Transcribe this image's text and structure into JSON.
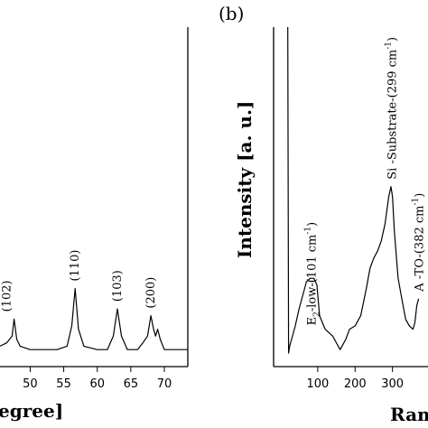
{
  "chart_data": [
    {
      "type": "line",
      "panel_label": "",
      "xlabel": "egree]",
      "ylabel": "",
      "xticks": [
        50,
        55,
        60,
        65,
        70
      ],
      "xlim": [
        45.5,
        73.5
      ],
      "ylim": [
        0,
        100
      ],
      "series": [
        {
          "x": [
            45.5,
            46.5,
            47.3,
            47.6,
            48.0,
            48.5,
            50,
            52,
            54,
            55.5,
            56.2,
            56.7,
            57.2,
            58,
            60,
            61.5,
            62.4,
            63.0,
            63.6,
            64.5,
            66,
            66.8,
            67.5,
            68.0,
            68.4,
            68.7,
            69.0,
            69.4,
            70,
            71,
            72,
            73.5
          ],
          "y": [
            6,
            7,
            9,
            14,
            8,
            6,
            5,
            5,
            5,
            6,
            12,
            23,
            11,
            6,
            5,
            5,
            9,
            17,
            9,
            5,
            5,
            7,
            9,
            15,
            11,
            9,
            11,
            8,
            5,
            5,
            5,
            5
          ]
        }
      ],
      "annotations": [
        {
          "text": "(102)",
          "x": 46.5
        },
        {
          "text": "(110)",
          "x": 56.7
        },
        {
          "text": "(103)",
          "x": 63.0
        },
        {
          "text": "(200)",
          "x": 68.0
        }
      ]
    },
    {
      "type": "line",
      "panel_label": "(b)",
      "xlabel": "Ram",
      "ylabel": "Intensity [a. u.]",
      "xticks": [
        100,
        200,
        300
      ],
      "xlim": [
        -18,
        395
      ],
      "ylim": [
        0,
        100
      ],
      "series": [
        {
          "x": [
            20,
            22,
            25,
            30,
            40,
            50,
            60,
            70,
            80,
            90,
            98,
            105,
            120,
            140,
            160,
            175,
            185,
            200,
            215,
            230,
            240,
            250,
            260,
            270,
            280,
            290,
            296,
            300,
            305,
            315,
            325,
            335,
            345,
            355,
            360,
            365,
            370
          ],
          "y": [
            100,
            4,
            6,
            8,
            12,
            17,
            21,
            25,
            26,
            26,
            24,
            15,
            11,
            9,
            5,
            8,
            11,
            12,
            15,
            23,
            29,
            32,
            34,
            37,
            42,
            50,
            53,
            50,
            40,
            26,
            20,
            14,
            12,
            11,
            13,
            18,
            20
          ]
        }
      ],
      "annotations": [
        {
          "text": "E",
          "sub": "2",
          "rest": "-low-(101 cm",
          "sup": "-1",
          "end": ")",
          "x": 85
        },
        {
          "text": "Si -Substrate-(299 cm",
          "sup": "-1",
          "end": ")",
          "x": 299
        },
        {
          "text": "A -TO-(382 cm",
          "sup": "-1",
          "end": ")",
          "x": 372
        }
      ]
    }
  ]
}
